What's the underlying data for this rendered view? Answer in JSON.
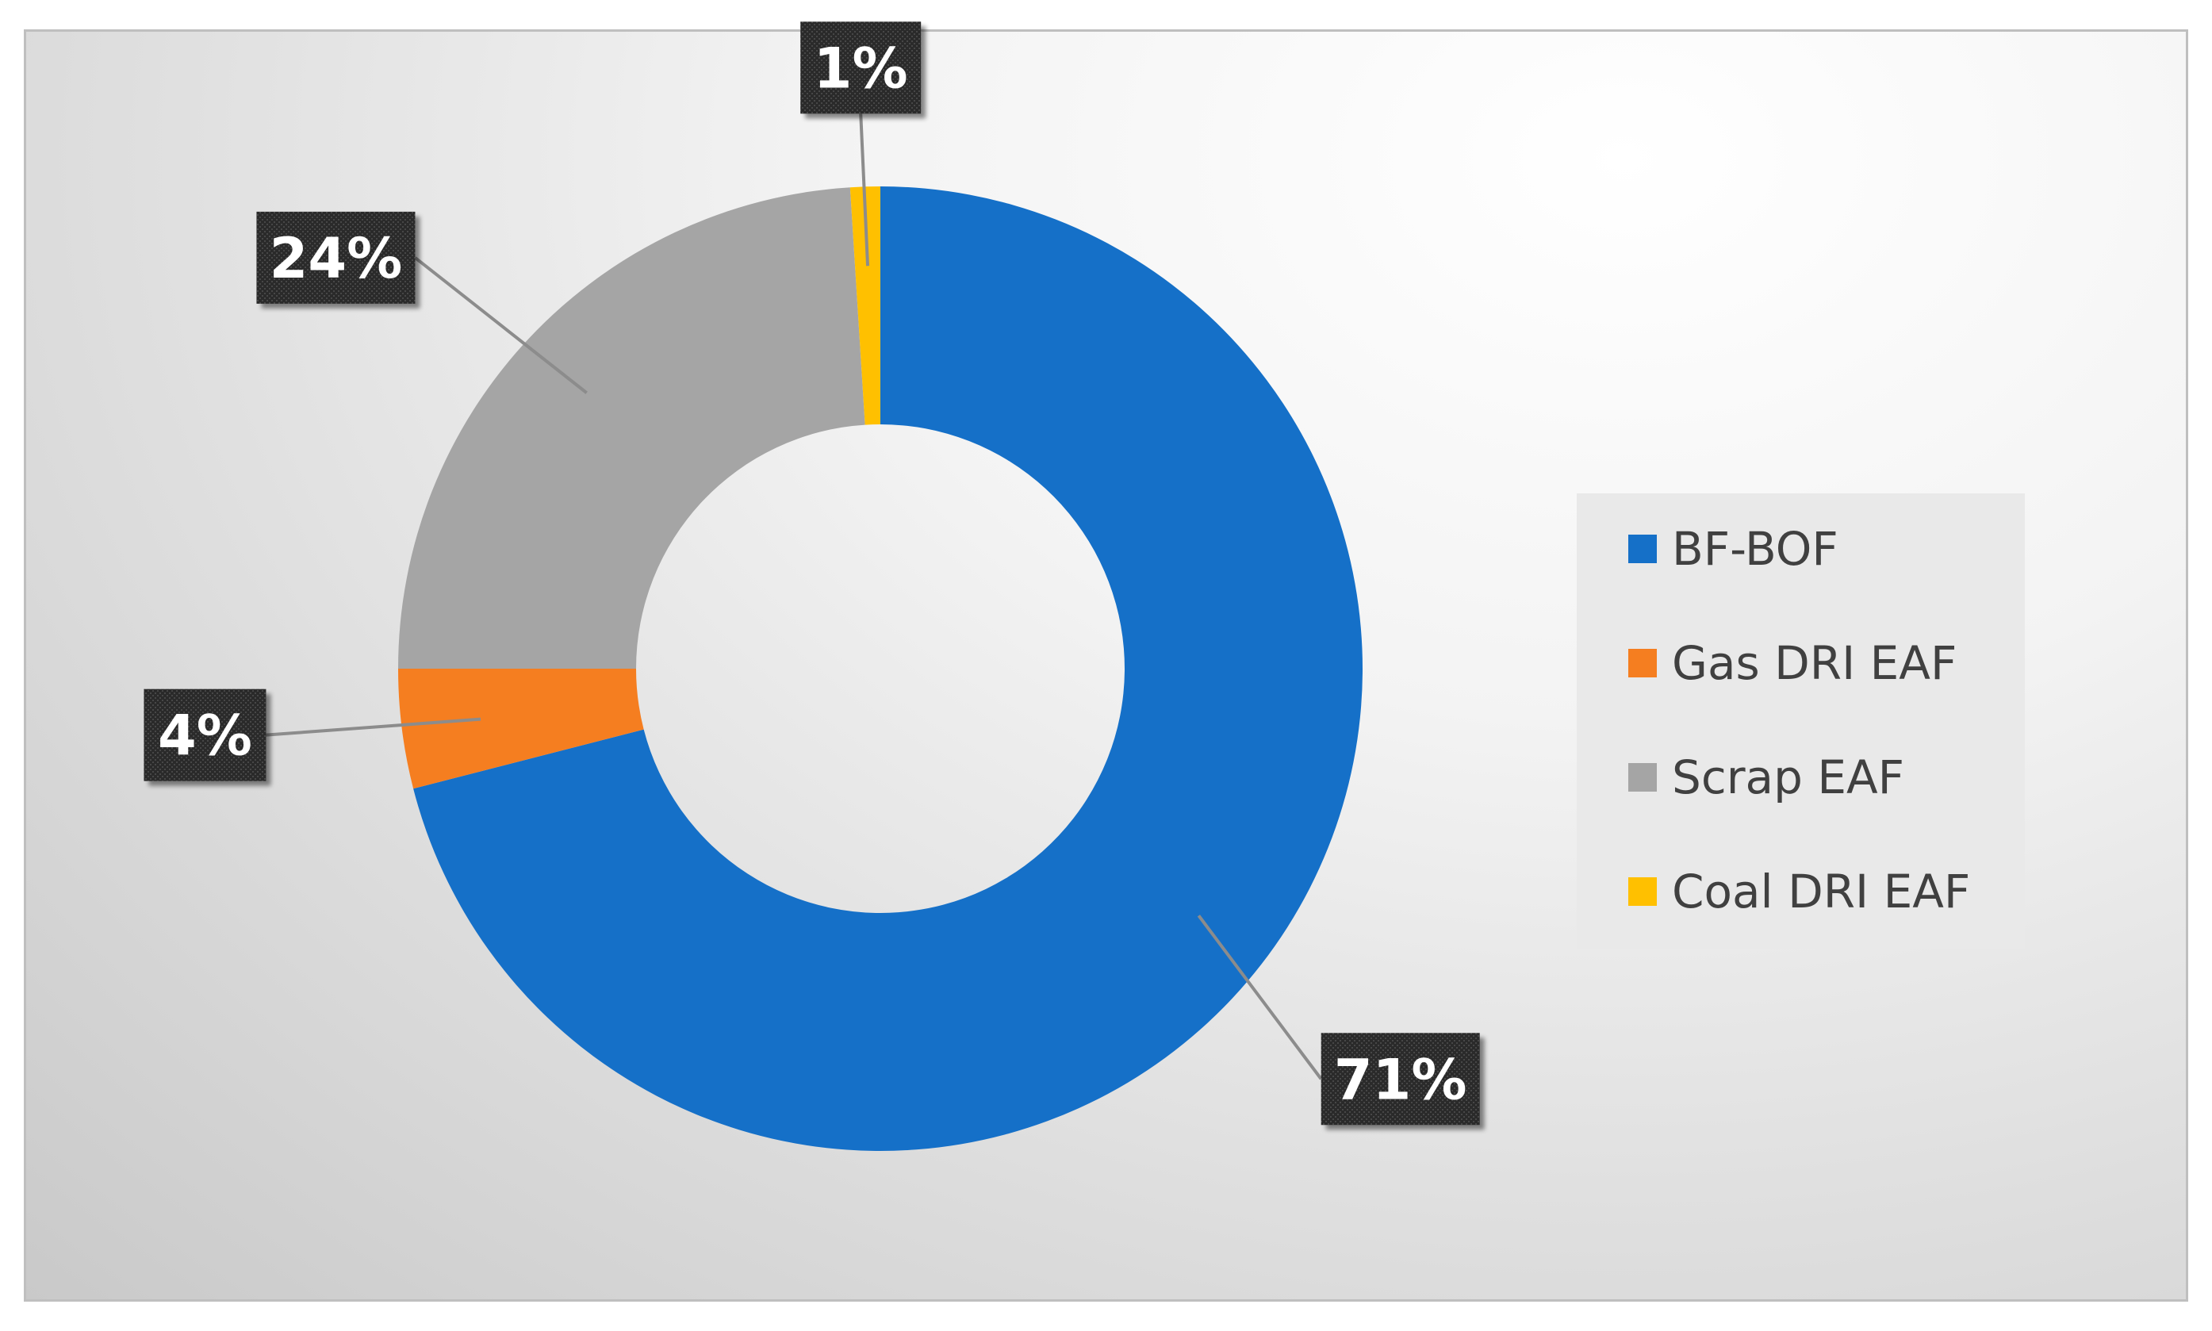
{
  "chart_data": {
    "type": "pie",
    "variant": "donut",
    "title": "",
    "categories": [
      "BF-BOF",
      "Gas DRI EAF",
      "Scrap EAF",
      "Coal DRI EAF"
    ],
    "values": [
      71,
      4,
      24,
      1
    ],
    "labels": [
      "71%",
      "4%",
      "24%",
      "1%"
    ],
    "colors": [
      "#1570c8",
      "#f57e20",
      "#a5a5a5",
      "#ffc000"
    ],
    "legend_position": "right",
    "data_label_style": "white bold text on dark patterned boxes with leader lines"
  }
}
